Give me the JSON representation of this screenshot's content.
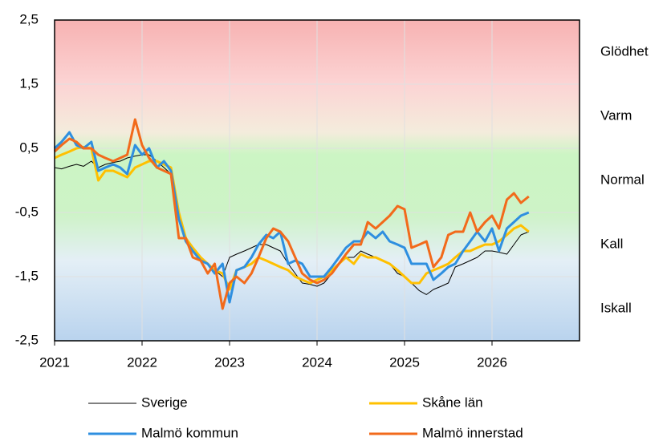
{
  "chart_data": {
    "type": "line",
    "x": [
      2021.0,
      2021.08,
      2021.17,
      2021.25,
      2021.33,
      2021.42,
      2021.5,
      2021.58,
      2021.67,
      2021.75,
      2021.83,
      2021.92,
      2022.0,
      2022.08,
      2022.17,
      2022.25,
      2022.33,
      2022.42,
      2022.5,
      2022.58,
      2022.67,
      2022.75,
      2022.83,
      2022.92,
      2023.0,
      2023.08,
      2023.17,
      2023.25,
      2023.33,
      2023.42,
      2023.5,
      2023.58,
      2023.67,
      2023.75,
      2023.83,
      2023.92,
      2024.0,
      2024.08,
      2024.17,
      2024.25,
      2024.33,
      2024.42,
      2024.5,
      2024.58,
      2024.67,
      2024.75,
      2024.83,
      2024.92,
      2025.0,
      2025.08,
      2025.17,
      2025.25,
      2025.33,
      2025.42,
      2025.5,
      2025.58,
      2025.67,
      2025.75,
      2025.83,
      2025.92,
      2026.0,
      2026.08,
      2026.17,
      2026.25,
      2026.33,
      2026.42
    ],
    "series": [
      {
        "name": "Sverige",
        "color": "#000000",
        "width": 1,
        "values": [
          0.2,
          0.18,
          0.22,
          0.25,
          0.22,
          0.3,
          0.2,
          0.25,
          0.28,
          0.3,
          0.35,
          0.38,
          0.4,
          0.4,
          0.3,
          0.2,
          0.1,
          -0.5,
          -0.9,
          -1.1,
          -1.25,
          -1.3,
          -1.4,
          -1.5,
          -1.2,
          -1.15,
          -1.1,
          -1.05,
          -1.0,
          -1.0,
          -1.05,
          -1.1,
          -1.3,
          -1.45,
          -1.6,
          -1.62,
          -1.65,
          -1.6,
          -1.45,
          -1.3,
          -1.2,
          -1.2,
          -1.1,
          -1.15,
          -1.2,
          -1.25,
          -1.3,
          -1.45,
          -1.5,
          -1.6,
          -1.72,
          -1.78,
          -1.7,
          -1.65,
          -1.6,
          -1.35,
          -1.3,
          -1.25,
          -1.2,
          -1.1,
          -1.1,
          -1.12,
          -1.15,
          -1.0,
          -0.85,
          -0.8
        ]
      },
      {
        "name": "Skåne län",
        "color": "#ffc000",
        "width": 3,
        "values": [
          0.35,
          0.4,
          0.45,
          0.5,
          0.52,
          0.5,
          0.0,
          0.15,
          0.15,
          0.1,
          0.05,
          0.2,
          0.25,
          0.3,
          0.3,
          0.25,
          0.2,
          -0.5,
          -0.9,
          -1.05,
          -1.2,
          -1.3,
          -1.4,
          -1.45,
          -1.7,
          -1.4,
          -1.35,
          -1.3,
          -1.2,
          -1.25,
          -1.3,
          -1.35,
          -1.4,
          -1.5,
          -1.55,
          -1.6,
          -1.55,
          -1.5,
          -1.4,
          -1.3,
          -1.2,
          -1.3,
          -1.15,
          -1.2,
          -1.2,
          -1.25,
          -1.3,
          -1.4,
          -1.5,
          -1.6,
          -1.6,
          -1.45,
          -1.4,
          -1.35,
          -1.3,
          -1.2,
          -1.1,
          -1.1,
          -1.05,
          -1.0,
          -1.0,
          -0.95,
          -0.85,
          -0.75,
          -0.7,
          -0.8
        ]
      },
      {
        "name": "Malmö kommun",
        "color": "#2e8fe0",
        "width": 3,
        "values": [
          0.5,
          0.6,
          0.75,
          0.55,
          0.5,
          0.6,
          0.15,
          0.2,
          0.25,
          0.2,
          0.1,
          0.55,
          0.4,
          0.5,
          0.2,
          0.3,
          0.15,
          -0.6,
          -0.95,
          -1.1,
          -1.25,
          -1.3,
          -1.45,
          -1.3,
          -1.9,
          -1.4,
          -1.35,
          -1.2,
          -1.0,
          -0.85,
          -0.9,
          -0.8,
          -1.3,
          -1.25,
          -1.3,
          -1.5,
          -1.5,
          -1.5,
          -1.35,
          -1.2,
          -1.05,
          -0.95,
          -0.95,
          -0.8,
          -0.9,
          -0.8,
          -0.95,
          -1.0,
          -1.05,
          -1.3,
          -1.3,
          -1.3,
          -1.55,
          -1.45,
          -1.35,
          -1.3,
          -1.1,
          -0.95,
          -0.8,
          -0.95,
          -0.75,
          -1.1,
          -0.75,
          -0.65,
          -0.55,
          -0.5
        ]
      },
      {
        "name": "Malmö innerstad",
        "color": "#f26a1b",
        "width": 3,
        "values": [
          0.45,
          0.55,
          0.65,
          0.6,
          0.5,
          0.5,
          0.4,
          0.35,
          0.3,
          0.35,
          0.4,
          0.95,
          0.55,
          0.35,
          0.2,
          0.15,
          0.1,
          -0.9,
          -0.9,
          -1.2,
          -1.25,
          -1.45,
          -1.3,
          -2.0,
          -1.6,
          -1.5,
          -1.6,
          -1.45,
          -1.2,
          -0.9,
          -0.75,
          -0.8,
          -0.95,
          -1.2,
          -1.45,
          -1.55,
          -1.6,
          -1.55,
          -1.45,
          -1.3,
          -1.15,
          -1.0,
          -1.0,
          -0.65,
          -0.75,
          -0.65,
          -0.55,
          -0.4,
          -0.45,
          -1.05,
          -1.0,
          -0.95,
          -1.35,
          -1.2,
          -0.85,
          -0.8,
          -0.8,
          -0.5,
          -0.8,
          -0.65,
          -0.55,
          -0.75,
          -0.3,
          -0.2,
          -0.35,
          -0.25
        ]
      }
    ],
    "xlim": [
      2021,
      2027
    ],
    "xticks": [
      2021,
      2022,
      2023,
      2024,
      2025,
      2026
    ],
    "ylim": [
      -2.5,
      2.5
    ],
    "yticks": [
      {
        "value": -2.5,
        "label": "-2,5"
      },
      {
        "value": -1.5,
        "label": "-1,5"
      },
      {
        "value": -0.5,
        "label": "-0,5"
      },
      {
        "value": 0.5,
        "label": "0,5"
      },
      {
        "value": 1.5,
        "label": "1,5"
      },
      {
        "value": 2.5,
        "label": "2,5"
      }
    ],
    "zones": [
      {
        "label": "Glödhet",
        "value": 2
      },
      {
        "label": "Varm",
        "value": 1
      },
      {
        "label": "Normal",
        "value": 0
      },
      {
        "label": "Kall",
        "value": -1
      },
      {
        "label": "Iskall",
        "value": -2
      }
    ],
    "grid": true
  }
}
